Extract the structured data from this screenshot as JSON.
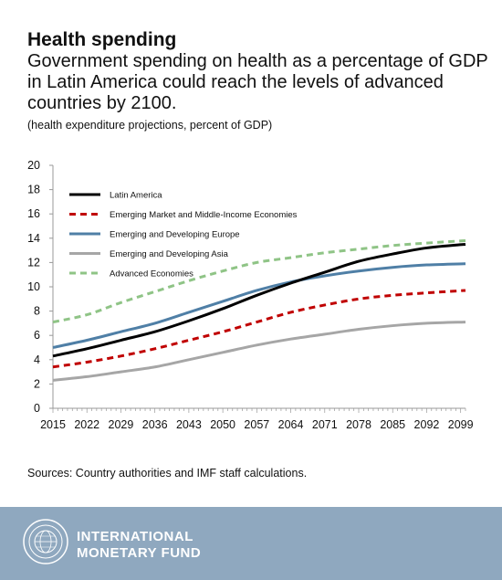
{
  "header": {
    "title": "Health spending",
    "subtitle": "Government spending on health as a percentage of GDP in Latin America could reach the levels of advanced countries by 2100.",
    "note": "(health expenditure projections, percent of GDP)"
  },
  "chart_data": {
    "type": "line",
    "title": "",
    "xlabel": "",
    "ylabel": "",
    "xlim": [
      2015,
      2100
    ],
    "ylim": [
      0,
      20
    ],
    "yticks": [
      0,
      2,
      4,
      6,
      8,
      10,
      12,
      14,
      16,
      18,
      20
    ],
    "xticks": [
      2015,
      2022,
      2029,
      2036,
      2043,
      2050,
      2057,
      2064,
      2071,
      2078,
      2085,
      2092,
      2099
    ],
    "legend_position": "top-left",
    "grid": false,
    "x": [
      2015,
      2022,
      2029,
      2036,
      2043,
      2050,
      2057,
      2064,
      2071,
      2078,
      2085,
      2092,
      2100
    ],
    "series": [
      {
        "name": "Latin America",
        "color": "#000000",
        "style": "solid",
        "values": [
          4.3,
          4.9,
          5.6,
          6.3,
          7.2,
          8.2,
          9.3,
          10.3,
          11.2,
          12.1,
          12.7,
          13.2,
          13.5
        ]
      },
      {
        "name": "Emerging Market and Middle-Income Economies",
        "color": "#c00000",
        "style": "dashed",
        "values": [
          3.4,
          3.8,
          4.3,
          4.9,
          5.6,
          6.3,
          7.1,
          7.9,
          8.5,
          9.0,
          9.3,
          9.5,
          9.7
        ]
      },
      {
        "name": "Emerging and Developing Europe",
        "color": "#4f7fa6",
        "style": "solid",
        "values": [
          5.0,
          5.6,
          6.3,
          7.0,
          7.9,
          8.8,
          9.7,
          10.4,
          10.9,
          11.3,
          11.6,
          11.8,
          11.9
        ]
      },
      {
        "name": "Emerging and Developing Asia",
        "color": "#a6a6a6",
        "style": "solid",
        "values": [
          2.3,
          2.6,
          3.0,
          3.4,
          4.0,
          4.6,
          5.2,
          5.7,
          6.1,
          6.5,
          6.8,
          7.0,
          7.1
        ]
      },
      {
        "name": "Advanced Economies",
        "color": "#8fc486",
        "style": "dashed",
        "values": [
          7.1,
          7.7,
          8.7,
          9.6,
          10.5,
          11.3,
          12.0,
          12.4,
          12.8,
          13.1,
          13.4,
          13.6,
          13.8
        ]
      }
    ]
  },
  "source": "Sources: Country authorities and IMF staff calculations.",
  "footer": {
    "line1": "INTERNATIONAL",
    "line2": "MONETARY FUND",
    "seal_icon": "imf-seal-icon",
    "background_color": "#8fa8bf"
  }
}
